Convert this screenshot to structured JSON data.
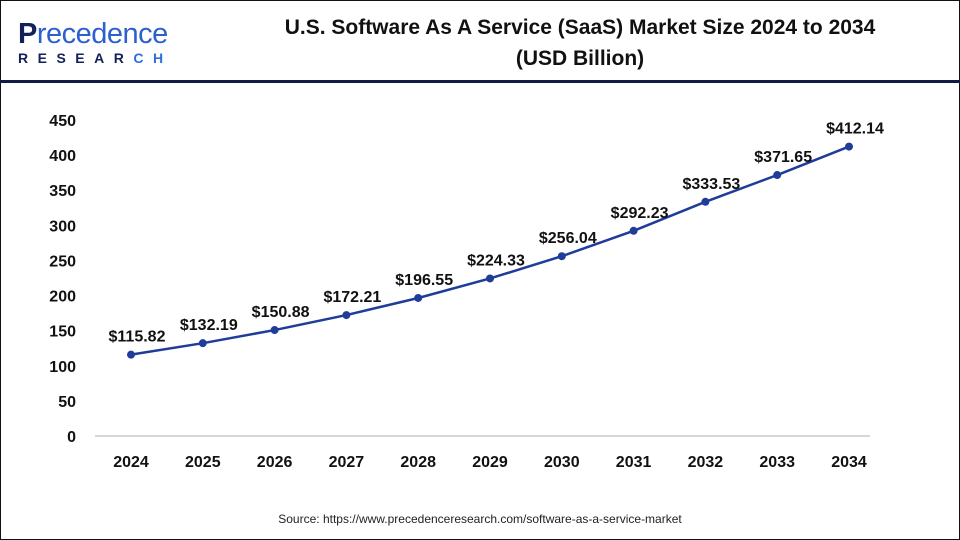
{
  "logo": {
    "brand": "Precedence",
    "sub": "RESEARCH"
  },
  "header": {
    "title_line1": "U.S. Software As A Service (SaaS) Market Size 2024 to 2034",
    "title_line2": "(USD Billion)"
  },
  "source": "Source: https://www.precedenceresearch.com/software-as-a-service-market",
  "chart_data": {
    "type": "line",
    "title": "U.S. Software As A Service (SaaS) Market Size 2024 to 2034 (USD Billion)",
    "categories": [
      "2024",
      "2025",
      "2026",
      "2027",
      "2028",
      "2029",
      "2030",
      "2031",
      "2032",
      "2033",
      "2034"
    ],
    "values": [
      115.82,
      132.19,
      150.88,
      172.21,
      196.55,
      224.33,
      256.04,
      292.23,
      333.53,
      371.65,
      412.14
    ],
    "data_labels": [
      "$115.82",
      "$132.19",
      "$150.88",
      "$172.21",
      "$196.55",
      "$224.33",
      "$256.04",
      "$292.23",
      "$333.53",
      "$371.65",
      "$412.14"
    ],
    "yticks": [
      "0",
      "50",
      "100",
      "150",
      "200",
      "250",
      "300",
      "350",
      "400",
      "450"
    ],
    "ylim": [
      0,
      450
    ],
    "grid": false,
    "line_color": "#1f3c99"
  }
}
